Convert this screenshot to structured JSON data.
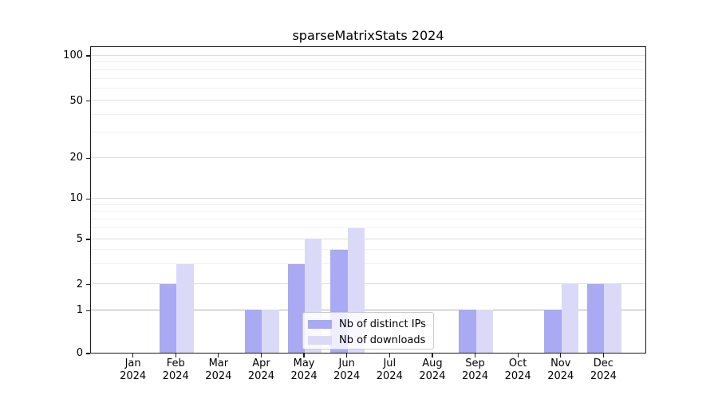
{
  "chart_data": {
    "type": "bar",
    "title": "sparseMatrixStats 2024",
    "categories": [
      "Jan",
      "Feb",
      "Mar",
      "Apr",
      "May",
      "Jun",
      "Jul",
      "Aug",
      "Sep",
      "Oct",
      "Nov",
      "Dec"
    ],
    "category_year": "2024",
    "series": [
      {
        "name": "Nb of distinct IPs",
        "color": "#a9a9f4",
        "values": [
          0,
          2,
          0,
          1,
          3,
          4,
          0,
          0,
          1,
          0,
          1,
          2
        ]
      },
      {
        "name": "Nb of downloads",
        "color": "#dadaf8",
        "values": [
          0,
          3,
          0,
          1,
          5,
          6,
          0,
          0,
          1,
          0,
          2,
          2
        ]
      }
    ],
    "y_axis": {
      "scale": "log-like",
      "tick_values": [
        0,
        1,
        2,
        5,
        10,
        20,
        50,
        100
      ],
      "tick_labels": [
        "0",
        "1",
        "2",
        "5",
        "10",
        "20",
        "50",
        "100"
      ],
      "minor_gridline_values": [
        3,
        4,
        6,
        7,
        8,
        9,
        30,
        40,
        60,
        70,
        80,
        90
      ],
      "ylim": [
        0,
        115
      ],
      "grid": true
    },
    "legend": {
      "position": "bottom-center",
      "entries": [
        "Nb of distinct IPs",
        "Nb of downloads"
      ]
    }
  }
}
